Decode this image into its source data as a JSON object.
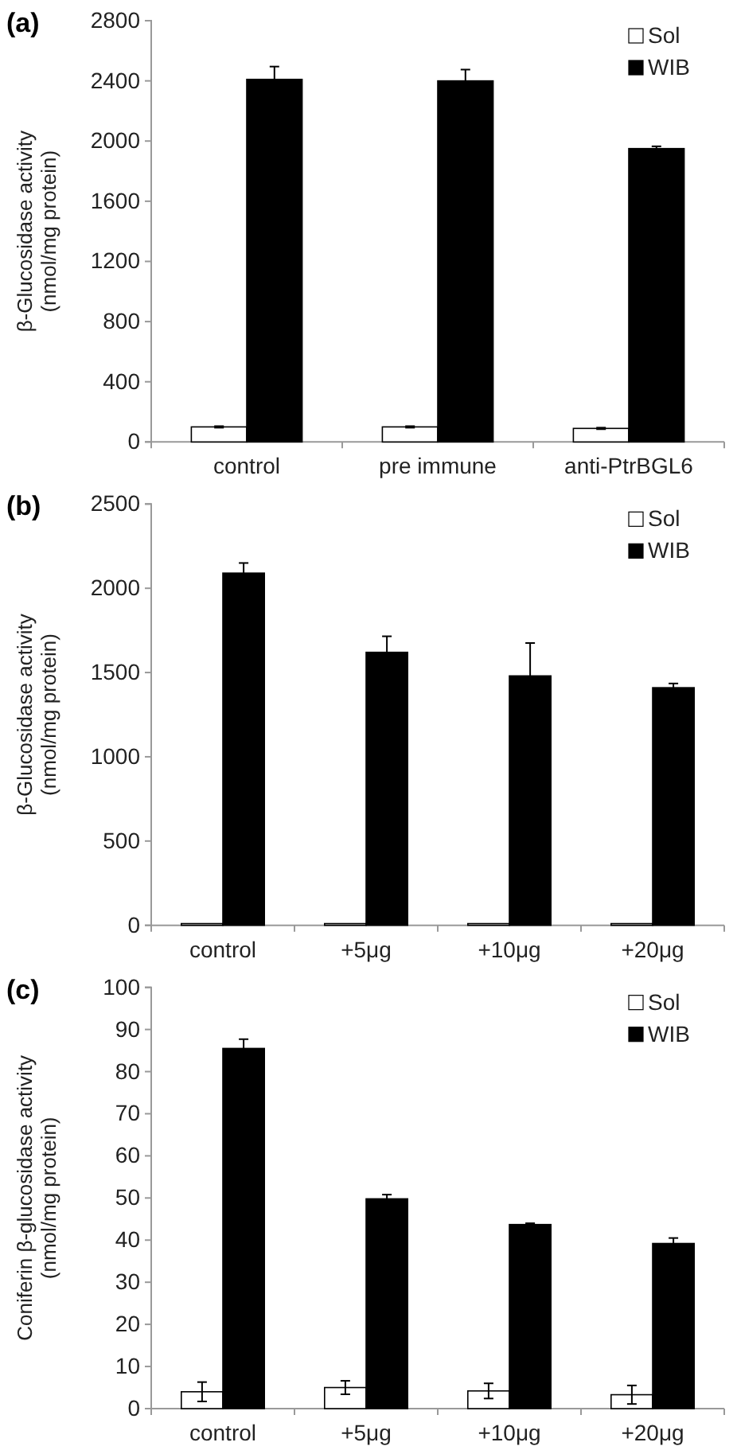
{
  "chart_data": [
    {
      "type": "bar",
      "title": "(a)",
      "ylabel": "β-Glucosidase activity\n(nmol/mg protein)",
      "categories": [
        "control",
        "pre immune",
        "anti-PtrBGL6"
      ],
      "series": [
        {
          "name": "Sol",
          "color": "#ffffff",
          "values": [
            100,
            100,
            90
          ],
          "errors": [
            5,
            5,
            5
          ]
        },
        {
          "name": "WIB",
          "color": "#000000",
          "values": [
            2410,
            2400,
            1950
          ],
          "errors": [
            85,
            75,
            15
          ]
        }
      ],
      "ylim": [
        0,
        2800
      ],
      "yticks": [
        0,
        400,
        800,
        1200,
        1600,
        2000,
        2400,
        2800
      ],
      "grid": false,
      "legend": "top right"
    },
    {
      "type": "bar",
      "title": "(b)",
      "ylabel": "β-Glucosidase activity\n(nmol/mg protein)",
      "categories": [
        "control",
        "+5μg",
        "+10μg",
        "+20μg"
      ],
      "series": [
        {
          "name": "Sol",
          "color": "#ffffff",
          "values": [
            10,
            10,
            10,
            10
          ]
        },
        {
          "name": "WIB",
          "color": "#000000",
          "values": [
            2090,
            1620,
            1480,
            1410
          ],
          "errors": [
            60,
            95,
            195,
            25
          ]
        }
      ],
      "ylim": [
        0,
        2500
      ],
      "yticks": [
        0,
        500,
        1000,
        1500,
        2000,
        2500
      ],
      "grid": false,
      "legend": "top right"
    },
    {
      "type": "bar",
      "title": "(c)",
      "ylabel": "Coniferin β-glucosidase activity\n(nmol/mg protein)",
      "categories": [
        "control",
        "+5μg",
        "+10μg",
        "+20μg"
      ],
      "series": [
        {
          "name": "Sol",
          "color": "#ffffff",
          "values": [
            4,
            5,
            4.2,
            3.3
          ],
          "errors": [
            2.3,
            1.6,
            1.8,
            2.2
          ]
        },
        {
          "name": "WIB",
          "color": "#000000",
          "values": [
            85.5,
            49.8,
            43.7,
            39.2
          ],
          "errors": [
            2.2,
            1,
            0.3,
            1.3
          ]
        }
      ],
      "ylim": [
        0,
        100
      ],
      "yticks": [
        0,
        10,
        20,
        30,
        40,
        50,
        60,
        70,
        80,
        90,
        100
      ],
      "grid": false,
      "legend": "top right"
    }
  ]
}
